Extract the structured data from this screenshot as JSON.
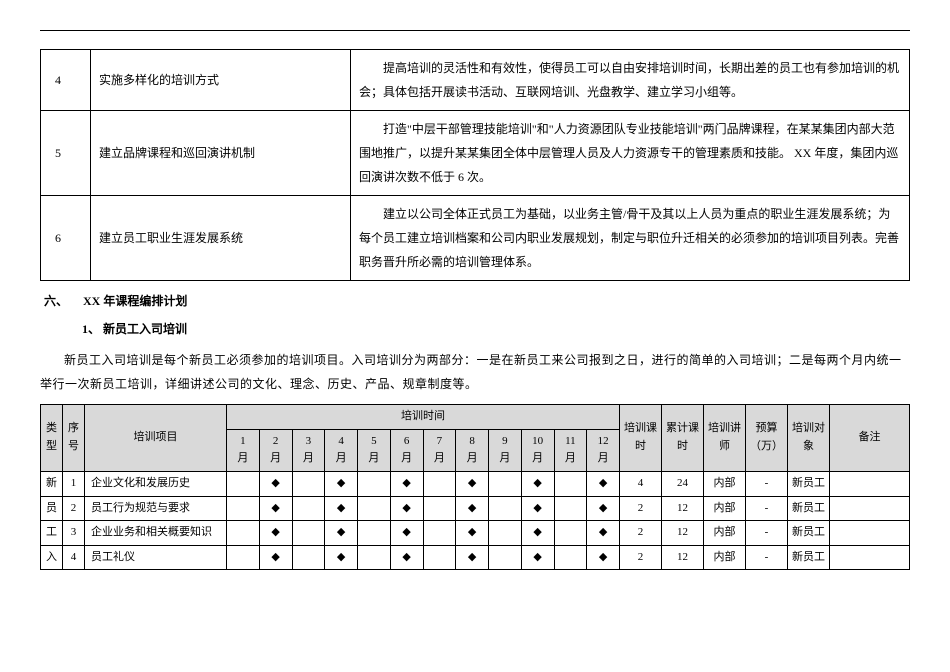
{
  "table1": {
    "rows": [
      {
        "num": "4",
        "title": "实施多样化的培训方式",
        "desc": "提高培训的灵活性和有效性，使得员工可以自由安排培训时间，长期出差的员工也有参加培训的机会；具体包括开展读书活动、互联网培训、光盘教学、建立学习小组等。"
      },
      {
        "num": "5",
        "title": "建立品牌课程和巡回演讲机制",
        "desc": "打造\"中层干部管理技能培训\"和\"人力资源团队专业技能培训\"两门品牌课程，在某某集团内部大范围地推广，以提升某某集团全体中层管理人员及人力资源专干的管理素质和技能。 XX 年度，集团内巡回演讲次数不低于 6 次。"
      },
      {
        "num": "6",
        "title": "建立员工职业生涯发展系统",
        "desc": "建立以公司全体正式员工为基础，以业务主管/骨干及其以上人员为重点的职业生涯发展系统；为每个员工建立培训档案和公司内职业发展规划，制定与职位升迁相关的必须参加的培训项目列表。完善职务晋升所必需的培训管理体系。"
      }
    ]
  },
  "section6": {
    "label": "六、",
    "title": "XX 年课程编排计划"
  },
  "sub1": {
    "label": "1、",
    "title": "新员工入司培训"
  },
  "paragraph": "新员工入司培训是每个新员工必须参加的培训项目。入司培训分为两部分：一是在新员工来公司报到之日，进行的简单的入司培训；二是每两个月内统一举行一次新员工培训，详细讲述公司的文化、理念、历史、产品、规章制度等。",
  "table2": {
    "header": {
      "type": "类型",
      "seq": "序号",
      "project": "培训项目",
      "time_group": "培训时间",
      "months": [
        "1月",
        "2月",
        "3月",
        "4月",
        "5月",
        "6月",
        "7月",
        "8月",
        "9月",
        "10月",
        "11月",
        "12月"
      ],
      "hour": "培训课时",
      "cum": "累计课时",
      "lecturer": "培训讲师",
      "budget": "预算（万）",
      "target": "培训对象",
      "note": "备注"
    },
    "type_text": "新员工入",
    "rows": [
      {
        "seq": "1",
        "project": "企业文化和发展历史",
        "months": [
          "",
          "◆",
          "",
          "◆",
          "",
          "◆",
          "",
          "◆",
          "",
          "◆",
          "",
          "◆"
        ],
        "hour": "4",
        "cum": "24",
        "lecturer": "内部",
        "budget": "-",
        "target": "新员工",
        "note": ""
      },
      {
        "seq": "2",
        "project": "员工行为规范与要求",
        "months": [
          "",
          "◆",
          "",
          "◆",
          "",
          "◆",
          "",
          "◆",
          "",
          "◆",
          "",
          "◆"
        ],
        "hour": "2",
        "cum": "12",
        "lecturer": "内部",
        "budget": "-",
        "target": "新员工",
        "note": ""
      },
      {
        "seq": "3",
        "project": "企业业务和相关概要知识",
        "months": [
          "",
          "◆",
          "",
          "◆",
          "",
          "◆",
          "",
          "◆",
          "",
          "◆",
          "",
          "◆"
        ],
        "hour": "2",
        "cum": "12",
        "lecturer": "内部",
        "budget": "-",
        "target": "新员工",
        "note": ""
      },
      {
        "seq": "4",
        "project": "员工礼仪",
        "months": [
          "",
          "◆",
          "",
          "◆",
          "",
          "◆",
          "",
          "◆",
          "",
          "◆",
          "",
          "◆"
        ],
        "hour": "2",
        "cum": "12",
        "lecturer": "内部",
        "budget": "-",
        "target": "新员工",
        "note": ""
      }
    ]
  }
}
